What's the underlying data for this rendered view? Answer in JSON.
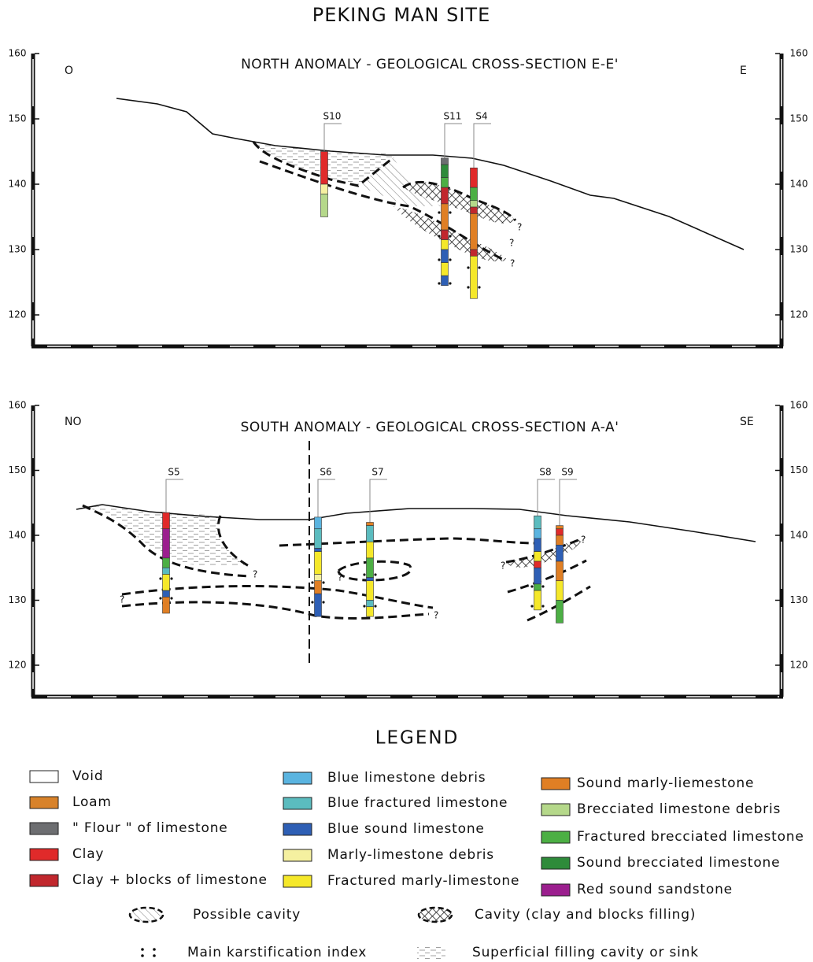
{
  "title": "PEKING MAN SITE",
  "sections": [
    {
      "title": "NORTH ANOMALY - GEOLOGICAL CROSS-SECTION E-E'",
      "left_dir": "O",
      "right_dir": "E",
      "ylim": [
        120,
        160
      ],
      "yticks": [
        120,
        130,
        140,
        150,
        160
      ],
      "question_marks": [
        "?",
        "?",
        "?"
      ],
      "boreholes": [
        {
          "label": "S10",
          "x": 412,
          "layers": [
            {
              "top": 145,
              "bottom": 140,
              "color": "#e02a2a"
            },
            {
              "top": 140,
              "bottom": 138.5,
              "color": "#f5f0a0"
            },
            {
              "top": 138.5,
              "bottom": 135,
              "color": "#b5d88a"
            }
          ]
        },
        {
          "label": "S11",
          "x": 565,
          "layers": [
            {
              "top": 144,
              "bottom": 143,
              "color": "#6d6e71"
            },
            {
              "top": 143,
              "bottom": 141,
              "color": "#2e8b3a"
            },
            {
              "top": 141,
              "bottom": 139.5,
              "color": "#4caf44"
            },
            {
              "top": 139.5,
              "bottom": 137,
              "color": "#c1272d"
            },
            {
              "top": 137,
              "bottom": 133,
              "color": "#e07f24"
            },
            {
              "top": 133,
              "bottom": 131.5,
              "color": "#c1272d"
            },
            {
              "top": 131.5,
              "bottom": 130,
              "color": "#f5e82a"
            },
            {
              "top": 130,
              "bottom": 128,
              "color": "#2e5fb5"
            },
            {
              "top": 128,
              "bottom": 126,
              "color": "#f5e82a"
            },
            {
              "top": 126,
              "bottom": 124.5,
              "color": "#2e5fb5"
            }
          ]
        },
        {
          "label": "S4",
          "x": 602,
          "layers": [
            {
              "top": 142.5,
              "bottom": 139.5,
              "color": "#e02a2a"
            },
            {
              "top": 139.5,
              "bottom": 137.5,
              "color": "#4caf44"
            },
            {
              "top": 137.5,
              "bottom": 136.5,
              "color": "#b5d88a"
            },
            {
              "top": 136.5,
              "bottom": 135.5,
              "color": "#c1272d"
            },
            {
              "top": 135.5,
              "bottom": 130,
              "color": "#e07f24"
            },
            {
              "top": 130,
              "bottom": 129,
              "color": "#c1272d"
            },
            {
              "top": 129,
              "bottom": 122.5,
              "color": "#f5e82a"
            }
          ]
        }
      ]
    },
    {
      "title": "SOUTH ANOMALY - GEOLOGICAL CROSS-SECTION A-A'",
      "left_dir": "NO",
      "right_dir": "SE",
      "ylim": [
        120,
        160
      ],
      "yticks": [
        120,
        130,
        140,
        150,
        160
      ],
      "question_marks": [
        "?",
        "?",
        "?",
        "?",
        "?",
        "?"
      ],
      "boreholes": [
        {
          "label": "S5",
          "x": 211,
          "layers": [
            {
              "top": 143.5,
              "bottom": 141,
              "color": "#e02a2a"
            },
            {
              "top": 141,
              "bottom": 136.5,
              "color": "#9b1f8e"
            },
            {
              "top": 136.5,
              "bottom": 135,
              "color": "#4caf44"
            },
            {
              "top": 135,
              "bottom": 134,
              "color": "#5bbcbf"
            },
            {
              "top": 134,
              "bottom": 131.5,
              "color": "#f5e82a"
            },
            {
              "top": 131.5,
              "bottom": 130.5,
              "color": "#2e5fb5"
            },
            {
              "top": 130.5,
              "bottom": 128,
              "color": "#e07f24"
            }
          ]
        },
        {
          "label": "S6",
          "x": 404,
          "layers": [
            {
              "top": 142.8,
              "bottom": 141,
              "color": "#5ab4e0"
            },
            {
              "top": 141,
              "bottom": 138,
              "color": "#5bbcbf"
            },
            {
              "top": 138,
              "bottom": 137.5,
              "color": "#2e5fb5"
            },
            {
              "top": 137.5,
              "bottom": 134,
              "color": "#f5e82a"
            },
            {
              "top": 134,
              "bottom": 133,
              "color": "#f5f0a0"
            },
            {
              "top": 133,
              "bottom": 131,
              "color": "#e07f24"
            },
            {
              "top": 131,
              "bottom": 127.5,
              "color": "#2e5fb5"
            }
          ]
        },
        {
          "label": "S7",
          "x": 470,
          "layers": [
            {
              "top": 142,
              "bottom": 141.5,
              "color": "#e07f24"
            },
            {
              "top": 141.5,
              "bottom": 139,
              "color": "#5bbcbf"
            },
            {
              "top": 139,
              "bottom": 136.5,
              "color": "#f5e82a"
            },
            {
              "top": 136.5,
              "bottom": 133.5,
              "color": "#4caf44"
            },
            {
              "top": 133.5,
              "bottom": 133,
              "color": "#2e5fb5"
            },
            {
              "top": 133,
              "bottom": 130,
              "color": "#f5e82a"
            },
            {
              "top": 130,
              "bottom": 129,
              "color": "#5bbcbf"
            },
            {
              "top": 129,
              "bottom": 127.5,
              "color": "#f5e82a"
            }
          ]
        },
        {
          "label": "S8",
          "x": 683,
          "layers": [
            {
              "top": 143,
              "bottom": 141,
              "color": "#5bbcbf"
            },
            {
              "top": 141,
              "bottom": 139.5,
              "color": "#5ab4e0"
            },
            {
              "top": 139.5,
              "bottom": 137.5,
              "color": "#2e5fb5"
            },
            {
              "top": 137.5,
              "bottom": 136,
              "color": "#f5e82a"
            },
            {
              "top": 136,
              "bottom": 135,
              "color": "#e02a2a"
            },
            {
              "top": 135,
              "bottom": 132.5,
              "color": "#2e5fb5"
            },
            {
              "top": 132.5,
              "bottom": 131.5,
              "color": "#4caf44"
            },
            {
              "top": 131.5,
              "bottom": 128.5,
              "color": "#f5e82a"
            }
          ]
        },
        {
          "label": "S9",
          "x": 711,
          "layers": [
            {
              "top": 141.5,
              "bottom": 141,
              "color": "#e07f24"
            },
            {
              "top": 141,
              "bottom": 140,
              "color": "#e02a2a"
            },
            {
              "top": 140,
              "bottom": 138.5,
              "color": "#e07f24"
            },
            {
              "top": 138.5,
              "bottom": 136,
              "color": "#2e5fb5"
            },
            {
              "top": 136,
              "bottom": 133,
              "color": "#e07f24"
            },
            {
              "top": 133,
              "bottom": 130,
              "color": "#f5e82a"
            },
            {
              "top": 130,
              "bottom": 126.5,
              "color": "#4caf44"
            }
          ]
        }
      ]
    }
  ],
  "legend": {
    "title": "LEGEND",
    "items": [
      {
        "label": "Void",
        "color": "#ffffff"
      },
      {
        "label": "Loam",
        "color": "#d8822a"
      },
      {
        "label": "\" Flour \" of limestone",
        "color": "#6d6e71"
      },
      {
        "label": "Clay",
        "color": "#e02a2a"
      },
      {
        "label": "Clay + blocks of limestone",
        "color": "#c1272d"
      },
      {
        "label": "Blue limestone debris",
        "color": "#5ab4e0"
      },
      {
        "label": "Blue fractured limestone",
        "color": "#5bbcbf"
      },
      {
        "label": "Blue sound limestone",
        "color": "#2e5fb5"
      },
      {
        "label": "Marly-limestone debris",
        "color": "#f5f0a0"
      },
      {
        "label": "Fractured marly-limestone",
        "color": "#f5e82a"
      },
      {
        "label": "Sound  marly-liemestone",
        "color": "#e07f24"
      },
      {
        "label": "Brecciated limestone debris",
        "color": "#b5d88a"
      },
      {
        "label": "Fractured brecciated limestone",
        "color": "#4caf44"
      },
      {
        "label": "Sound brecciated limestone",
        "color": "#2e8b3a"
      },
      {
        "label": "Red sound sandstone",
        "color": "#9b1f8e"
      }
    ],
    "patterns": [
      "Possible cavity",
      "Cavity (clay and blocks filling)",
      "Main karstification index",
      "Superficial filling cavity or sink"
    ]
  }
}
